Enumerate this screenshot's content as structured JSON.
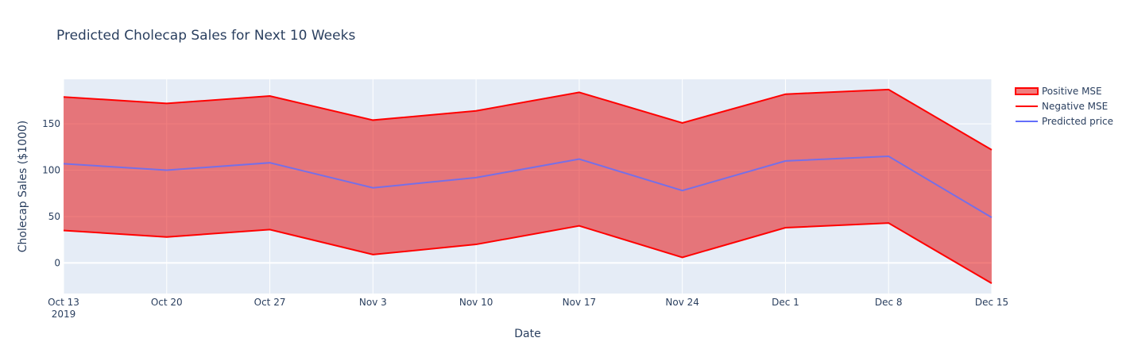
{
  "chart_data": {
    "type": "area",
    "title": "Predicted Cholecap Sales for Next 10 Weeks",
    "xlabel": "Date",
    "ylabel": "Cholecap Sales ($1000)",
    "x": [
      "2019-10-13",
      "2019-10-20",
      "2019-10-27",
      "2019-11-03",
      "2019-11-10",
      "2019-11-17",
      "2019-11-24",
      "2019-12-01",
      "2019-12-08",
      "2019-12-15"
    ],
    "x_tick_labels": [
      "Oct 13",
      "Oct 20",
      "Oct 27",
      "Nov 3",
      "Nov 10",
      "Nov 17",
      "Nov 24",
      "Dec 1",
      "Dec 8",
      "Dec 15"
    ],
    "x_tick_sublabel": "2019",
    "y_ticks": [
      0,
      50,
      100,
      150
    ],
    "ylim": [
      -33,
      198
    ],
    "grid": true,
    "legend_position": "top-right",
    "series": [
      {
        "name": "Positive MSE",
        "color": "#ff0000",
        "fill": "rgba(230,20,20,0.55)",
        "values": [
          179,
          172,
          180,
          154,
          164,
          184,
          151,
          182,
          187,
          122
        ]
      },
      {
        "name": "Negative MSE",
        "color": "#ff0000",
        "values": [
          35,
          28,
          36,
          9,
          20,
          40,
          6,
          38,
          43,
          -22
        ]
      },
      {
        "name": "Predicted price",
        "color": "#636efa",
        "values": [
          107,
          100,
          108,
          81,
          92,
          112,
          78,
          110,
          115,
          49
        ]
      }
    ]
  }
}
